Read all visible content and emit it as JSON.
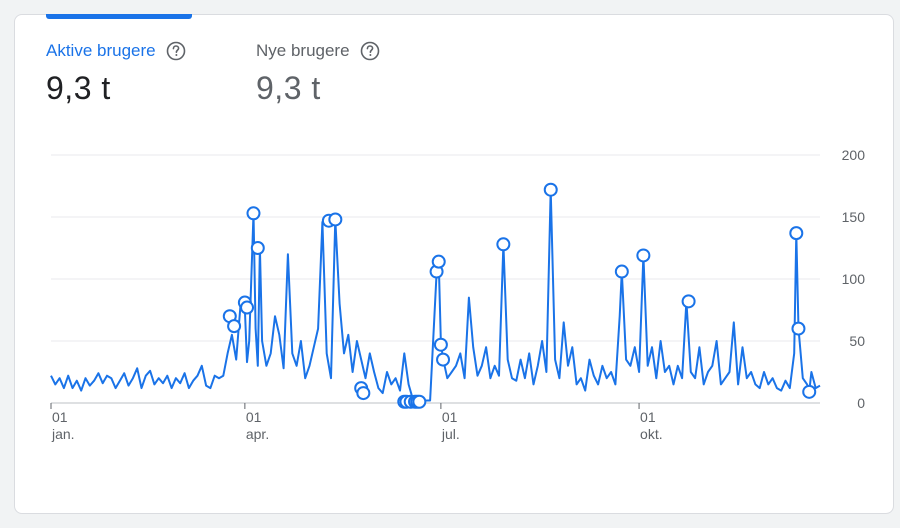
{
  "metrics": [
    {
      "label": "Aktive brugere",
      "value": "9,3 t",
      "active": true
    },
    {
      "label": "Nye brugere",
      "value": "9,3 t",
      "active": false
    }
  ],
  "icons": {
    "help": "help-circle-icon"
  },
  "colors": {
    "accent": "#1a73e8",
    "grid": "#e8eaed",
    "axis": "#5f6368"
  },
  "chart_data": {
    "type": "line",
    "title": "",
    "xlabel": "",
    "ylabel": "",
    "ylim": [
      0,
      200
    ],
    "y_ticks": [
      0,
      50,
      100,
      150,
      200
    ],
    "y_tick_labels": [
      "0",
      "50",
      "100",
      "150",
      "200"
    ],
    "y_axis_position": "right",
    "grid": true,
    "x_ticks": [
      {
        "day": 1,
        "label_top": "01",
        "label_bottom": "jan."
      },
      {
        "day": 91,
        "label_top": "01",
        "label_bottom": "apr."
      },
      {
        "day": 182,
        "label_top": "01",
        "label_bottom": "jul."
      },
      {
        "day": 274,
        "label_top": "01",
        "label_bottom": "okt."
      }
    ],
    "series": [
      {
        "color": "#1a73e8",
        "points": [
          [
            1,
            22
          ],
          [
            3,
            15
          ],
          [
            5,
            20
          ],
          [
            7,
            12
          ],
          [
            9,
            22
          ],
          [
            11,
            12
          ],
          [
            13,
            18
          ],
          [
            15,
            10
          ],
          [
            17,
            20
          ],
          [
            19,
            14
          ],
          [
            21,
            18
          ],
          [
            23,
            24
          ],
          [
            25,
            16
          ],
          [
            27,
            22
          ],
          [
            29,
            20
          ],
          [
            31,
            12
          ],
          [
            33,
            18
          ],
          [
            35,
            24
          ],
          [
            37,
            14
          ],
          [
            39,
            20
          ],
          [
            41,
            28
          ],
          [
            43,
            12
          ],
          [
            45,
            22
          ],
          [
            47,
            26
          ],
          [
            49,
            15
          ],
          [
            51,
            20
          ],
          [
            53,
            16
          ],
          [
            55,
            22
          ],
          [
            57,
            12
          ],
          [
            59,
            20
          ],
          [
            61,
            16
          ],
          [
            63,
            24
          ],
          [
            65,
            12
          ],
          [
            67,
            18
          ],
          [
            69,
            22
          ],
          [
            71,
            30
          ],
          [
            73,
            14
          ],
          [
            75,
            12
          ],
          [
            77,
            22
          ],
          [
            79,
            20
          ],
          [
            81,
            22
          ],
          [
            83,
            40
          ],
          [
            85,
            55
          ],
          [
            87,
            35
          ],
          [
            89,
            80
          ],
          [
            91,
            75
          ],
          [
            92,
            33
          ],
          [
            93,
            50
          ],
          [
            95,
            153
          ],
          [
            96,
            60
          ],
          [
            97,
            30
          ],
          [
            98,
            125
          ],
          [
            99,
            50
          ],
          [
            101,
            30
          ],
          [
            103,
            40
          ],
          [
            105,
            70
          ],
          [
            107,
            55
          ],
          [
            109,
            28
          ],
          [
            111,
            120
          ],
          [
            113,
            40
          ],
          [
            115,
            30
          ],
          [
            117,
            50
          ],
          [
            119,
            20
          ],
          [
            121,
            30
          ],
          [
            123,
            45
          ],
          [
            125,
            60
          ],
          [
            127,
            146
          ],
          [
            129,
            40
          ],
          [
            131,
            20
          ],
          [
            133,
            148
          ],
          [
            135,
            80
          ],
          [
            137,
            40
          ],
          [
            139,
            55
          ],
          [
            141,
            25
          ],
          [
            143,
            50
          ],
          [
            145,
            35
          ],
          [
            147,
            20
          ],
          [
            149,
            40
          ],
          [
            151,
            25
          ],
          [
            153,
            12
          ],
          [
            155,
            8
          ],
          [
            157,
            25
          ],
          [
            159,
            15
          ],
          [
            161,
            20
          ],
          [
            163,
            10
          ],
          [
            165,
            40
          ],
          [
            167,
            15
          ],
          [
            169,
            3
          ],
          [
            171,
            2
          ],
          [
            173,
            2
          ],
          [
            175,
            2
          ],
          [
            177,
            2
          ],
          [
            179,
            70
          ],
          [
            180,
            105
          ],
          [
            181,
            115
          ],
          [
            182,
            48
          ],
          [
            183,
            36
          ],
          [
            185,
            20
          ],
          [
            187,
            25
          ],
          [
            189,
            30
          ],
          [
            191,
            40
          ],
          [
            193,
            20
          ],
          [
            195,
            85
          ],
          [
            197,
            45
          ],
          [
            199,
            22
          ],
          [
            201,
            30
          ],
          [
            203,
            45
          ],
          [
            205,
            20
          ],
          [
            207,
            30
          ],
          [
            209,
            22
          ],
          [
            211,
            128
          ],
          [
            213,
            35
          ],
          [
            215,
            20
          ],
          [
            217,
            18
          ],
          [
            219,
            35
          ],
          [
            221,
            20
          ],
          [
            223,
            40
          ],
          [
            225,
            15
          ],
          [
            227,
            30
          ],
          [
            229,
            50
          ],
          [
            231,
            25
          ],
          [
            233,
            172
          ],
          [
            235,
            35
          ],
          [
            237,
            20
          ],
          [
            239,
            65
          ],
          [
            241,
            30
          ],
          [
            243,
            45
          ],
          [
            245,
            15
          ],
          [
            247,
            20
          ],
          [
            249,
            10
          ],
          [
            251,
            35
          ],
          [
            253,
            22
          ],
          [
            255,
            15
          ],
          [
            257,
            30
          ],
          [
            259,
            20
          ],
          [
            261,
            25
          ],
          [
            263,
            15
          ],
          [
            265,
            70
          ],
          [
            266,
            106
          ],
          [
            268,
            35
          ],
          [
            270,
            30
          ],
          [
            272,
            45
          ],
          [
            274,
            25
          ],
          [
            276,
            119
          ],
          [
            278,
            30
          ],
          [
            280,
            45
          ],
          [
            282,
            20
          ],
          [
            284,
            50
          ],
          [
            286,
            25
          ],
          [
            288,
            30
          ],
          [
            290,
            15
          ],
          [
            292,
            30
          ],
          [
            294,
            20
          ],
          [
            296,
            82
          ],
          [
            298,
            25
          ],
          [
            300,
            20
          ],
          [
            302,
            45
          ],
          [
            304,
            15
          ],
          [
            306,
            25
          ],
          [
            308,
            30
          ],
          [
            310,
            50
          ],
          [
            312,
            15
          ],
          [
            314,
            20
          ],
          [
            316,
            25
          ],
          [
            318,
            65
          ],
          [
            320,
            15
          ],
          [
            322,
            45
          ],
          [
            324,
            20
          ],
          [
            326,
            25
          ],
          [
            328,
            15
          ],
          [
            330,
            12
          ],
          [
            332,
            25
          ],
          [
            334,
            15
          ],
          [
            336,
            20
          ],
          [
            338,
            12
          ],
          [
            340,
            10
          ],
          [
            342,
            18
          ],
          [
            344,
            12
          ],
          [
            346,
            40
          ],
          [
            347,
            137
          ],
          [
            348,
            60
          ],
          [
            350,
            20
          ],
          [
            352,
            15
          ],
          [
            353,
            9
          ],
          [
            354,
            25
          ],
          [
            356,
            12
          ],
          [
            358,
            14
          ]
        ],
        "markers": [
          [
            84,
            70
          ],
          [
            86,
            62
          ],
          [
            91,
            81
          ],
          [
            92,
            77
          ],
          [
            95,
            153
          ],
          [
            97,
            125
          ],
          [
            130,
            147
          ],
          [
            133,
            148
          ],
          [
            145,
            12
          ],
          [
            146,
            8
          ],
          [
            165,
            1
          ],
          [
            166,
            1
          ],
          [
            168,
            1
          ],
          [
            170,
            1
          ],
          [
            171,
            1
          ],
          [
            172,
            1
          ],
          [
            180,
            106
          ],
          [
            181,
            114
          ],
          [
            182,
            47
          ],
          [
            183,
            35
          ],
          [
            211,
            128
          ],
          [
            233,
            172
          ],
          [
            266,
            106
          ],
          [
            276,
            119
          ],
          [
            297,
            82
          ],
          [
            347,
            137
          ],
          [
            348,
            60
          ],
          [
            353,
            9
          ]
        ]
      }
    ]
  }
}
